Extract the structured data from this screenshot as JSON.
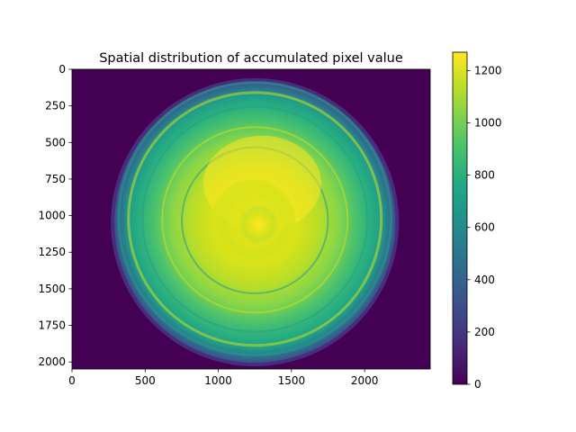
{
  "chart_data": {
    "type": "heatmap",
    "title": "Spatial distribution of accumulated pixel value",
    "xlabel": "",
    "ylabel": "",
    "xlim": [
      0,
      2448
    ],
    "ylim": [
      2048,
      0
    ],
    "xticks": [
      0,
      500,
      1000,
      1500,
      2000
    ],
    "yticks": [
      0,
      250,
      500,
      750,
      1000,
      1250,
      1500,
      1750,
      2000
    ],
    "colorbar": {
      "min": 0,
      "max": 1270,
      "ticks": [
        0,
        200,
        400,
        600,
        800,
        1000,
        1200
      ],
      "colormap": "viridis"
    },
    "image_description_data": {
      "disk_center": [
        1250,
        1045
      ],
      "disk_radius": 960,
      "background_value": 0,
      "peak_center": [
        1275,
        1060
      ],
      "peak_value": 1250
    },
    "grid": false
  }
}
